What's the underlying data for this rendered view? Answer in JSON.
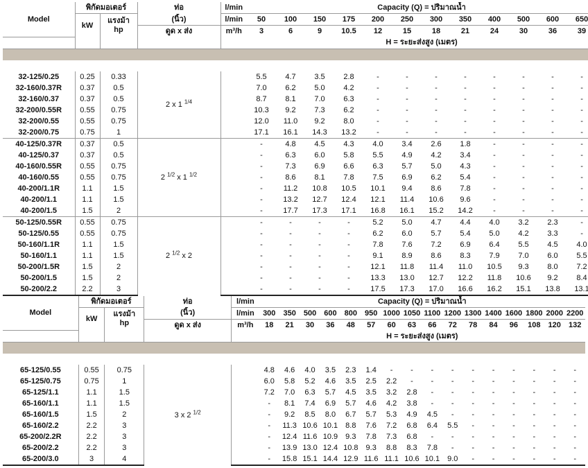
{
  "tables": [
    {
      "header": {
        "model": "Model",
        "motor": "พิกัดมอเตอร์",
        "pipe": "ท่อ",
        "pipe_unit": "(นิ้ว)",
        "kw": "kW",
        "hp_thai": "แรงม้า",
        "hp": "hp",
        "pipe_sub": "ดูด x ส่ง",
        "lmin_label": "l/min",
        "m3h_label": "m³/h",
        "capacity": "Capacity (Q) = ปริมาณน้ำ",
        "head": "H = ระยะส่งสูง (เมตร)",
        "lmin": [
          "50",
          "100",
          "150",
          "175",
          "200",
          "250",
          "300",
          "350",
          "400",
          "500",
          "600",
          "650"
        ],
        "m3h": [
          "3",
          "6",
          "9",
          "10.5",
          "12",
          "15",
          "18",
          "21",
          "24",
          "30",
          "36",
          "39"
        ]
      },
      "groups": [
        {
          "pipe": {
            "a": "2 x 1 ",
            "frac": "1/4",
            "b": ""
          },
          "rows": [
            {
              "model": "32-125/0.25",
              "kw": "0.25",
              "hp": "0.33",
              "h": [
                "5.5",
                "4.7",
                "3.5",
                "2.8",
                "-",
                "-",
                "-",
                "-",
                "-",
                "-",
                "-",
                "-"
              ]
            },
            {
              "model": "32-160/0.37R",
              "kw": "0.37",
              "hp": "0.5",
              "h": [
                "7.0",
                "6.2",
                "5.0",
                "4.2",
                "-",
                "-",
                "-",
                "-",
                "-",
                "-",
                "-",
                "-"
              ]
            },
            {
              "model": "32-160/0.37",
              "kw": "0.37",
              "hp": "0.5",
              "h": [
                "8.7",
                "8.1",
                "7.0",
                "6.3",
                "-",
                "-",
                "-",
                "-",
                "-",
                "-",
                "-",
                "-"
              ]
            },
            {
              "model": "32-200/0.55R",
              "kw": "0.55",
              "hp": "0.75",
              "h": [
                "10.3",
                "9.2",
                "7.3",
                "6.2",
                "-",
                "-",
                "-",
                "-",
                "-",
                "-",
                "-",
                "-"
              ]
            },
            {
              "model": "32-200/0.55",
              "kw": "0.55",
              "hp": "0.75",
              "h": [
                "12.0",
                "11.0",
                "9.2",
                "8.0",
                "-",
                "-",
                "-",
                "-",
                "-",
                "-",
                "-",
                "-"
              ]
            },
            {
              "model": "32-200/0.75",
              "kw": "0.75",
              "hp": "1",
              "h": [
                "17.1",
                "16.1",
                "14.3",
                "13.2",
                "-",
                "-",
                "-",
                "-",
                "-",
                "-",
                "-",
                "-"
              ]
            }
          ]
        },
        {
          "pipe": {
            "a": "2 ",
            "frac": "1/2",
            "b": " x 1 ",
            "frac2": "1/2"
          },
          "rows": [
            {
              "model": "40-125/0.37R",
              "kw": "0.37",
              "hp": "0.5",
              "h": [
                "-",
                "4.8",
                "4.5",
                "4.3",
                "4.0",
                "3.4",
                "2.6",
                "1.8",
                "-",
                "-",
                "-",
                "-"
              ]
            },
            {
              "model": "40-125/0.37",
              "kw": "0.37",
              "hp": "0.5",
              "h": [
                "-",
                "6.3",
                "6.0",
                "5.8",
                "5.5",
                "4.9",
                "4.2",
                "3.4",
                "-",
                "-",
                "-",
                "-"
              ]
            },
            {
              "model": "40-160/0.55R",
              "kw": "0.55",
              "hp": "0.75",
              "h": [
                "-",
                "7.3",
                "6.9",
                "6.6",
                "6.3",
                "5.7",
                "5.0",
                "4.3",
                "-",
                "-",
                "-",
                "-"
              ]
            },
            {
              "model": "40-160/0.55",
              "kw": "0.55",
              "hp": "0.75",
              "h": [
                "-",
                "8.6",
                "8.1",
                "7.8",
                "7.5",
                "6.9",
                "6.2",
                "5.4",
                "-",
                "-",
                "-",
                "-"
              ]
            },
            {
              "model": "40-200/1.1R",
              "kw": "1.1",
              "hp": "1.5",
              "h": [
                "-",
                "11.2",
                "10.8",
                "10.5",
                "10.1",
                "9.4",
                "8.6",
                "7.8",
                "-",
                "-",
                "-",
                "-"
              ]
            },
            {
              "model": "40-200/1.1",
              "kw": "1.1",
              "hp": "1.5",
              "h": [
                "-",
                "13.2",
                "12.7",
                "12.4",
                "12.1",
                "11.4",
                "10.6",
                "9.6",
                "-",
                "-",
                "-",
                "-"
              ]
            },
            {
              "model": "40-200/1.5",
              "kw": "1.5",
              "hp": "2",
              "h": [
                "-",
                "17.7",
                "17.3",
                "17.1",
                "16.8",
                "16.1",
                "15.2",
                "14.2",
                "-",
                "-",
                "-",
                "-"
              ]
            }
          ]
        },
        {
          "pipe": {
            "a": "2 ",
            "frac": "1/2",
            "b": " x 2"
          },
          "rows": [
            {
              "model": "50-125/0.55R",
              "kw": "0.55",
              "hp": "0.75",
              "h": [
                "-",
                "-",
                "-",
                "-",
                "5.2",
                "5.0",
                "4.7",
                "4.4",
                "4.0",
                "3.2",
                "2.3",
                "-"
              ]
            },
            {
              "model": "50-125/0.55",
              "kw": "0.55",
              "hp": "0.75",
              "h": [
                "-",
                "-",
                "-",
                "-",
                "6.2",
                "6.0",
                "5.7",
                "5.4",
                "5.0",
                "4.2",
                "3.3",
                "-"
              ]
            },
            {
              "model": "50-160/1.1R",
              "kw": "1.1",
              "hp": "1.5",
              "h": [
                "-",
                "-",
                "-",
                "-",
                "7.8",
                "7.6",
                "7.2",
                "6.9",
                "6.4",
                "5.5",
                "4.5",
                "4.0"
              ]
            },
            {
              "model": "50-160/1.1",
              "kw": "1.1",
              "hp": "1.5",
              "h": [
                "-",
                "-",
                "-",
                "-",
                "9.1",
                "8.9",
                "8.6",
                "8.3",
                "7.9",
                "7.0",
                "6.0",
                "5.5"
              ]
            },
            {
              "model": "50-200/1.5R",
              "kw": "1.5",
              "hp": "2",
              "h": [
                "-",
                "-",
                "-",
                "-",
                "12.1",
                "11.8",
                "11.4",
                "11.0",
                "10.5",
                "9.3",
                "8.0",
                "7.2"
              ]
            },
            {
              "model": "50-200/1.5",
              "kw": "1.5",
              "hp": "2",
              "h": [
                "-",
                "-",
                "-",
                "-",
                "13.3",
                "13.0",
                "12.7",
                "12.2",
                "11.8",
                "10.6",
                "9.2",
                "8.4"
              ]
            },
            {
              "model": "50-200/2.2",
              "kw": "2.2",
              "hp": "3",
              "h": [
                "-",
                "-",
                "-",
                "-",
                "17.5",
                "17.3",
                "17.0",
                "16.6",
                "16.2",
                "15.1",
                "13.8",
                "13.1"
              ]
            }
          ]
        }
      ]
    },
    {
      "header": {
        "model": "Model",
        "motor": "พิกัดมอเตอร์",
        "pipe": "ท่อ",
        "pipe_unit": "(นิ้ว)",
        "kw": "kW",
        "hp_thai": "แรงม้า",
        "hp": "hp",
        "pipe_sub": "ดูด x ส่ง",
        "lmin_label": "l/min",
        "m3h_label": "m³/h",
        "capacity": "Capacity (Q) = ปริมาณน้ำ",
        "head": "H = ระยะส่งสูง (เมตร)",
        "lmin": [
          "300",
          "350",
          "500",
          "600",
          "800",
          "950",
          "1000",
          "1050",
          "1100",
          "1200",
          "1300",
          "1400",
          "1600",
          "1800",
          "2000",
          "2200"
        ],
        "m3h": [
          "18",
          "21",
          "30",
          "36",
          "48",
          "57",
          "60",
          "63",
          "66",
          "72",
          "78",
          "84",
          "96",
          "108",
          "120",
          "132"
        ]
      },
      "groups": [
        {
          "pipe": {
            "a": "3 x 2 ",
            "frac": "1/2",
            "b": ""
          },
          "rows": [
            {
              "model": "65-125/0.55",
              "kw": "0.55",
              "hp": "0.75",
              "h": [
                "4.8",
                "4.6",
                "4.0",
                "3.5",
                "2.3",
                "1.4",
                "-",
                "-",
                "-",
                "-",
                "-",
                "-",
                "-",
                "-",
                "-",
                "-"
              ]
            },
            {
              "model": "65-125/0.75",
              "kw": "0.75",
              "hp": "1",
              "h": [
                "6.0",
                "5.8",
                "5.2",
                "4.6",
                "3.5",
                "2.5",
                "2.2",
                "-",
                "-",
                "-",
                "-",
                "-",
                "-",
                "-",
                "-",
                "-"
              ]
            },
            {
              "model": "65-125/1.1",
              "kw": "1.1",
              "hp": "1.5",
              "h": [
                "7.2",
                "7.0",
                "6.3",
                "5.7",
                "4.5",
                "3.5",
                "3.2",
                "2.8",
                "-",
                "-",
                "-",
                "-",
                "-",
                "-",
                "-",
                "-"
              ]
            },
            {
              "model": "65-160/1.1",
              "kw": "1.1",
              "hp": "1.5",
              "h": [
                "-",
                "8.1",
                "7.4",
                "6.9",
                "5.7",
                "4.6",
                "4.2",
                "3.8",
                "-",
                "-",
                "-",
                "-",
                "-",
                "-",
                "-",
                "-"
              ]
            },
            {
              "model": "65-160/1.5",
              "kw": "1.5",
              "hp": "2",
              "h": [
                "-",
                "9.2",
                "8.5",
                "8.0",
                "6.7",
                "5.7",
                "5.3",
                "4.9",
                "4.5",
                "-",
                "-",
                "-",
                "-",
                "-",
                "-",
                "-"
              ]
            },
            {
              "model": "65-160/2.2",
              "kw": "2.2",
              "hp": "3",
              "h": [
                "-",
                "11.3",
                "10.6",
                "10.1",
                "8.8",
                "7.6",
                "7.2",
                "6.8",
                "6.4",
                "5.5",
                "-",
                "-",
                "-",
                "-",
                "-",
                "-"
              ]
            },
            {
              "model": "65-200/2.2R",
              "kw": "2.2",
              "hp": "3",
              "h": [
                "-",
                "12.4",
                "11.6",
                "10.9",
                "9.3",
                "7.8",
                "7.3",
                "6.8",
                "-",
                "-",
                "-",
                "-",
                "-",
                "-",
                "-",
                "-"
              ]
            },
            {
              "model": "65-200/2.2",
              "kw": "2.2",
              "hp": "3",
              "h": [
                "-",
                "13.9",
                "13.0",
                "12.4",
                "10.8",
                "9.3",
                "8.8",
                "8.3",
                "7.8",
                "-",
                "-",
                "-",
                "-",
                "-",
                "-",
                "-"
              ]
            },
            {
              "model": "65-200/3.0",
              "kw": "3",
              "hp": "4",
              "h": [
                "-",
                "15.8",
                "15.1",
                "14.4",
                "12.9",
                "11.6",
                "11.1",
                "10.6",
                "10.1",
                "9.0",
                "-",
                "-",
                "-",
                "-",
                "-",
                "-"
              ]
            }
          ]
        }
      ]
    }
  ]
}
